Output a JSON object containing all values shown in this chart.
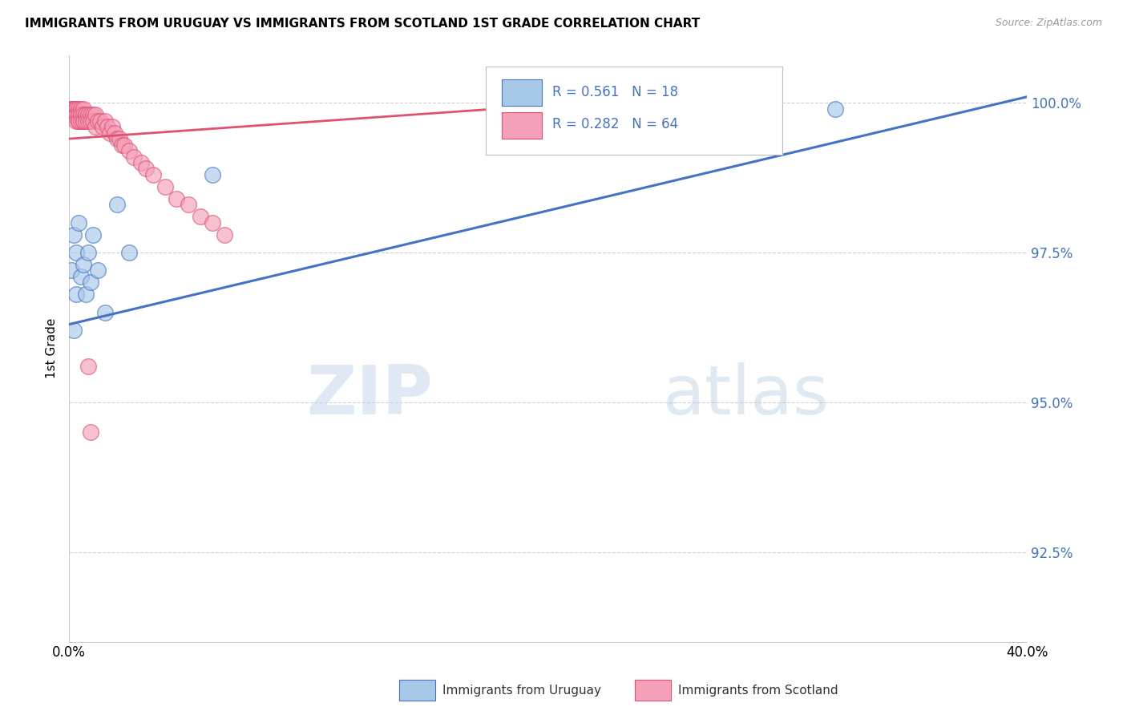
{
  "title": "IMMIGRANTS FROM URUGUAY VS IMMIGRANTS FROM SCOTLAND 1ST GRADE CORRELATION CHART",
  "source": "Source: ZipAtlas.com",
  "ylabel": "1st Grade",
  "legend_label_uruguay": "Immigrants from Uruguay",
  "legend_label_scotland": "Immigrants from Scotland",
  "R_uruguay": 0.561,
  "N_uruguay": 18,
  "R_scotland": 0.282,
  "N_scotland": 64,
  "xlim": [
    0.0,
    0.4
  ],
  "ylim": [
    0.91,
    1.008
  ],
  "yticks": [
    0.925,
    0.95,
    0.975,
    1.0
  ],
  "ytick_labels": [
    "92.5%",
    "95.0%",
    "97.5%",
    "100.0%"
  ],
  "xticks": [
    0.0,
    0.05,
    0.1,
    0.15,
    0.2,
    0.25,
    0.3,
    0.35,
    0.4
  ],
  "xtick_labels": [
    "0.0%",
    "",
    "",
    "",
    "",
    "",
    "",
    "",
    "40.0%"
  ],
  "color_uruguay": "#a8c8e8",
  "color_scotland": "#f4a0b8",
  "color_line_uruguay": "#4472c4",
  "color_line_scotland": "#e05070",
  "watermark_zip": "ZIP",
  "watermark_atlas": "atlas",
  "uruguay_x": [
    0.001,
    0.002,
    0.002,
    0.003,
    0.003,
    0.004,
    0.005,
    0.006,
    0.007,
    0.008,
    0.009,
    0.01,
    0.012,
    0.015,
    0.02,
    0.025,
    0.06,
    0.32
  ],
  "uruguay_y": [
    0.972,
    0.978,
    0.962,
    0.975,
    0.968,
    0.98,
    0.971,
    0.973,
    0.968,
    0.975,
    0.97,
    0.978,
    0.972,
    0.965,
    0.983,
    0.975,
    0.988,
    0.999
  ],
  "scotland_x": [
    0.001,
    0.001,
    0.001,
    0.001,
    0.001,
    0.002,
    0.002,
    0.002,
    0.002,
    0.002,
    0.003,
    0.003,
    0.003,
    0.003,
    0.003,
    0.004,
    0.004,
    0.004,
    0.004,
    0.004,
    0.005,
    0.005,
    0.005,
    0.005,
    0.006,
    0.006,
    0.006,
    0.006,
    0.007,
    0.007,
    0.007,
    0.008,
    0.008,
    0.009,
    0.009,
    0.01,
    0.01,
    0.011,
    0.011,
    0.012,
    0.013,
    0.014,
    0.015,
    0.016,
    0.017,
    0.018,
    0.019,
    0.02,
    0.021,
    0.022,
    0.023,
    0.025,
    0.027,
    0.03,
    0.032,
    0.035,
    0.04,
    0.045,
    0.05,
    0.055,
    0.06,
    0.065,
    0.008,
    0.009
  ],
  "scotland_y": [
    0.999,
    0.999,
    0.999,
    0.998,
    0.998,
    0.999,
    0.999,
    0.998,
    0.998,
    0.998,
    0.999,
    0.999,
    0.998,
    0.998,
    0.997,
    0.999,
    0.998,
    0.998,
    0.997,
    0.997,
    0.999,
    0.998,
    0.998,
    0.997,
    0.999,
    0.998,
    0.997,
    0.997,
    0.998,
    0.998,
    0.997,
    0.998,
    0.997,
    0.998,
    0.997,
    0.998,
    0.997,
    0.998,
    0.996,
    0.997,
    0.997,
    0.996,
    0.997,
    0.996,
    0.995,
    0.996,
    0.995,
    0.994,
    0.994,
    0.993,
    0.993,
    0.992,
    0.991,
    0.99,
    0.989,
    0.988,
    0.986,
    0.984,
    0.983,
    0.981,
    0.98,
    0.978,
    0.956,
    0.945
  ],
  "trend_uruguay_x0": 0.0,
  "trend_uruguay_y0": 0.963,
  "trend_uruguay_x1": 0.4,
  "trend_uruguay_y1": 1.001,
  "trend_scotland_x0": 0.0,
  "trend_scotland_y0": 0.994,
  "trend_scotland_x1": 0.25,
  "trend_scotland_y1": 1.001
}
